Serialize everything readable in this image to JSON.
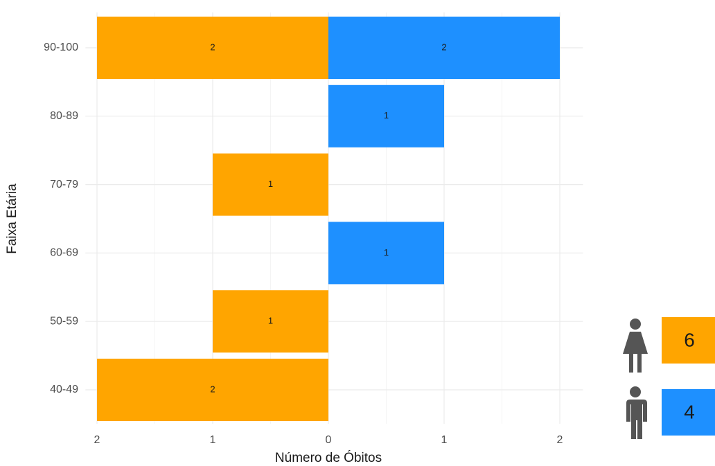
{
  "chart_data": {
    "type": "pyramid",
    "x_label": "Número de Óbitos",
    "y_label": "Faixa Etária",
    "categories": [
      "90-100",
      "80-89",
      "70-79",
      "60-69",
      "50-59",
      "40-49"
    ],
    "series": [
      {
        "color": "#FFA500",
        "values": [
          -2,
          null,
          -1,
          null,
          -1,
          -2
        ],
        "value_labels": [
          "2",
          null,
          "1",
          null,
          "1",
          "2"
        ],
        "total": 6
      },
      {
        "color": "#1E90FF",
        "values": [
          2,
          1,
          null,
          1,
          null,
          null
        ],
        "total": 4
      }
    ],
    "xlim": [
      -2.1,
      2.2
    ],
    "xticks": [
      {
        "value": -2,
        "label": "2"
      },
      {
        "value": -1,
        "label": "1"
      },
      0,
      1,
      2
    ],
    "grid": true
  }
}
